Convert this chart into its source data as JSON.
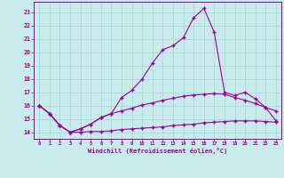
{
  "xlabel": "Windchill (Refroidissement éolien,°C)",
  "bg_color": "#c8ecec",
  "grid_color": "#a8d4d4",
  "line_color": "#990099",
  "x_ticks": [
    0,
    1,
    2,
    3,
    4,
    5,
    6,
    7,
    8,
    9,
    10,
    11,
    12,
    13,
    14,
    15,
    16,
    17,
    18,
    19,
    20,
    21,
    22,
    23
  ],
  "y_ticks": [
    14,
    15,
    16,
    17,
    18,
    19,
    20,
    21,
    22,
    23
  ],
  "ylim": [
    13.5,
    23.8
  ],
  "xlim": [
    -0.5,
    23.5
  ],
  "line1_x": [
    0,
    1,
    2,
    3,
    4,
    5,
    6,
    7,
    8,
    9,
    10,
    11,
    12,
    13,
    14,
    15,
    16,
    17,
    18,
    19,
    20,
    21,
    22,
    23
  ],
  "line1_y": [
    16.0,
    15.4,
    14.5,
    14.0,
    14.0,
    14.05,
    14.05,
    14.1,
    14.2,
    14.25,
    14.3,
    14.35,
    14.4,
    14.5,
    14.55,
    14.6,
    14.7,
    14.75,
    14.8,
    14.85,
    14.85,
    14.85,
    14.8,
    14.75
  ],
  "line2_x": [
    0,
    1,
    2,
    3,
    4,
    5,
    6,
    7,
    8,
    9,
    10,
    11,
    12,
    13,
    14,
    15,
    16,
    17,
    18,
    19,
    20,
    21,
    22,
    23
  ],
  "line2_y": [
    16.0,
    15.4,
    14.5,
    14.0,
    14.25,
    14.6,
    15.1,
    15.4,
    15.6,
    15.8,
    16.05,
    16.2,
    16.4,
    16.55,
    16.7,
    16.8,
    16.85,
    16.9,
    16.85,
    16.6,
    16.4,
    16.15,
    15.85,
    15.6
  ],
  "line3_x": [
    0,
    1,
    2,
    3,
    4,
    5,
    6,
    7,
    8,
    9,
    10,
    11,
    12,
    13,
    14,
    15,
    16,
    17,
    18,
    19,
    20,
    21,
    22,
    23
  ],
  "line3_y": [
    16.0,
    15.4,
    14.5,
    14.0,
    14.25,
    14.6,
    15.1,
    15.4,
    16.6,
    17.15,
    18.0,
    19.2,
    20.2,
    20.5,
    21.1,
    22.6,
    23.3,
    21.5,
    17.0,
    16.75,
    17.0,
    16.5,
    15.85,
    14.85
  ]
}
